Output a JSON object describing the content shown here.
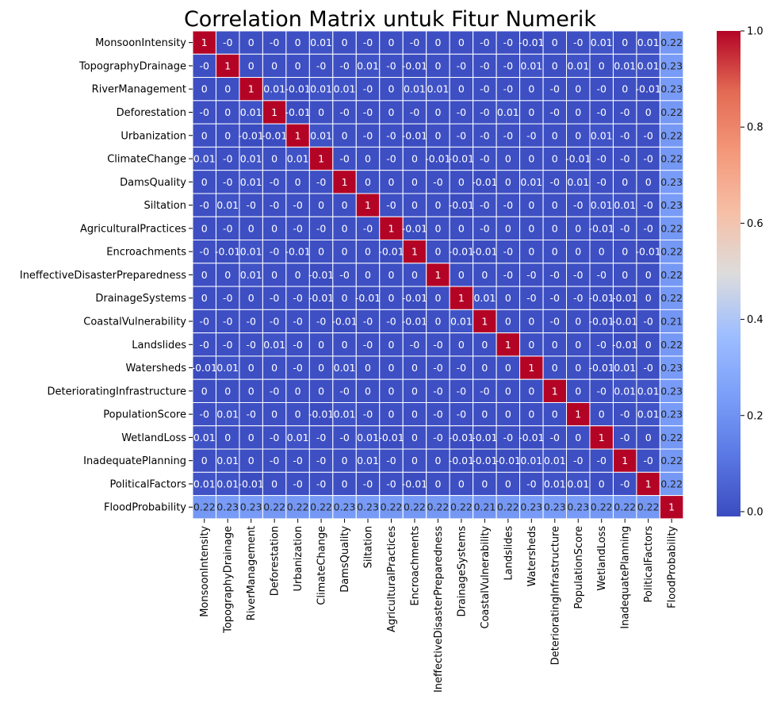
{
  "chart_data": {
    "type": "heatmap",
    "title": "Correlation Matrix untuk Fitur Numerik",
    "colormap": "coolwarm",
    "color_range": [
      -0.01,
      1.0
    ],
    "colorbar_ticks": [
      "0.0",
      "0.2",
      "0.4",
      "0.6",
      "0.8",
      "1.0"
    ],
    "colorbar_tick_values": [
      0.0,
      0.2,
      0.4,
      0.6,
      0.8,
      1.0
    ],
    "cell_border": "#ffffff",
    "variables": [
      "MonsoonIntensity",
      "TopographyDrainage",
      "RiverManagement",
      "Deforestation",
      "Urbanization",
      "ClimateChange",
      "DamsQuality",
      "Siltation",
      "AgriculturalPractices",
      "Encroachments",
      "IneffectiveDisasterPreparedness",
      "DrainageSystems",
      "CoastalVulnerability",
      "Landslides",
      "Watersheds",
      "DeterioratingInfrastructure",
      "PopulationScore",
      "WetlandLoss",
      "InadequatePlanning",
      "PoliticalFactors",
      "FloodProbability"
    ],
    "labels": [
      [
        "1",
        "-0",
        "0",
        "-0",
        "0",
        "0.01",
        "0",
        "-0",
        "0",
        "-0",
        "0",
        "0",
        "-0",
        "-0",
        "-0.01",
        "0",
        "-0",
        "0.01",
        "0",
        "0.01",
        "0.22"
      ],
      [
        "-0",
        "1",
        "0",
        "0",
        "0",
        "-0",
        "-0",
        "0.01",
        "-0",
        "-0.01",
        "0",
        "-0",
        "-0",
        "-0",
        "0.01",
        "0",
        "0.01",
        "0",
        "0.01",
        "0.01",
        "0.23"
      ],
      [
        "0",
        "0",
        "1",
        "0.01",
        "-0.01",
        "0.01",
        "0.01",
        "-0",
        "0",
        "0.01",
        "0.01",
        "0",
        "-0",
        "-0",
        "0",
        "-0",
        "0",
        "-0",
        "0",
        "-0.01",
        "0.23"
      ],
      [
        "-0",
        "0",
        "0.01",
        "1",
        "-0.01",
        "0",
        "-0",
        "-0",
        "0",
        "-0",
        "0",
        "-0",
        "-0",
        "0.01",
        "0",
        "-0",
        "0",
        "-0",
        "-0",
        "0",
        "0.22"
      ],
      [
        "0",
        "0",
        "-0.01",
        "-0.01",
        "1",
        "0.01",
        "0",
        "-0",
        "-0",
        "-0.01",
        "0",
        "-0",
        "-0",
        "-0",
        "-0",
        "0",
        "0",
        "0.01",
        "-0",
        "-0",
        "0.22"
      ],
      [
        "0.01",
        "-0",
        "0.01",
        "0",
        "0.01",
        "1",
        "-0",
        "0",
        "-0",
        "0",
        "-0.01",
        "-0.01",
        "-0",
        "0",
        "0",
        "0",
        "-0.01",
        "-0",
        "-0",
        "-0",
        "0.22"
      ],
      [
        "0",
        "-0",
        "0.01",
        "-0",
        "0",
        "-0",
        "1",
        "0",
        "0",
        "0",
        "-0",
        "0",
        "-0.01",
        "0",
        "0.01",
        "-0",
        "0.01",
        "-0",
        "0",
        "0",
        "0.23"
      ],
      [
        "-0",
        "0.01",
        "-0",
        "-0",
        "-0",
        "0",
        "0",
        "1",
        "-0",
        "0",
        "0",
        "-0.01",
        "-0",
        "-0",
        "0",
        "0",
        "-0",
        "0.01",
        "0.01",
        "-0",
        "0.23"
      ],
      [
        "0",
        "-0",
        "0",
        "0",
        "-0",
        "-0",
        "0",
        "-0",
        "1",
        "-0.01",
        "0",
        "0",
        "-0",
        "0",
        "0",
        "0",
        "0",
        "-0.01",
        "-0",
        "-0",
        "0.22"
      ],
      [
        "-0",
        "-0.01",
        "0.01",
        "-0",
        "-0.01",
        "0",
        "0",
        "0",
        "-0.01",
        "1",
        "0",
        "-0.01",
        "-0.01",
        "-0",
        "0",
        "0",
        "0",
        "0",
        "0",
        "-0.01",
        "0.22"
      ],
      [
        "0",
        "0",
        "0.01",
        "0",
        "0",
        "-0.01",
        "-0",
        "0",
        "0",
        "0",
        "1",
        "0",
        "0",
        "-0",
        "-0",
        "-0",
        "-0",
        "-0",
        "0",
        "0",
        "0.22"
      ],
      [
        "0",
        "-0",
        "0",
        "-0",
        "-0",
        "-0.01",
        "0",
        "-0.01",
        "0",
        "-0.01",
        "0",
        "1",
        "0.01",
        "0",
        "-0",
        "-0",
        "-0",
        "-0.01",
        "-0.01",
        "0",
        "0.22"
      ],
      [
        "-0",
        "-0",
        "-0",
        "-0",
        "-0",
        "-0",
        "-0.01",
        "-0",
        "-0",
        "-0.01",
        "0",
        "0.01",
        "1",
        "0",
        "0",
        "-0",
        "0",
        "-0.01",
        "-0.01",
        "-0",
        "0.21"
      ],
      [
        "-0",
        "-0",
        "-0",
        "0.01",
        "-0",
        "0",
        "0",
        "-0",
        "0",
        "-0",
        "-0",
        "0",
        "0",
        "1",
        "0",
        "0",
        "0",
        "-0",
        "-0.01",
        "0",
        "0.22"
      ],
      [
        "-0.01",
        "0.01",
        "0",
        "0",
        "-0",
        "0",
        "0.01",
        "0",
        "0",
        "0",
        "-0",
        "-0",
        "0",
        "0",
        "1",
        "0",
        "0",
        "-0.01",
        "0.01",
        "-0",
        "0.23"
      ],
      [
        "0",
        "0",
        "0",
        "-0",
        "0",
        "0",
        "-0",
        "0",
        "0",
        "0",
        "-0",
        "-0",
        "-0",
        "0",
        "0",
        "1",
        "0",
        "-0",
        "0.01",
        "0.01",
        "0.23"
      ],
      [
        "-0",
        "0.01",
        "-0",
        "0",
        "0",
        "-0.01",
        "0.01",
        "-0",
        "0",
        "0",
        "-0",
        "-0",
        "0",
        "0",
        "0",
        "0",
        "1",
        "0",
        "-0",
        "0.01",
        "0.23"
      ],
      [
        "0.01",
        "0",
        "0",
        "-0",
        "0.01",
        "-0",
        "-0",
        "0.01",
        "-0.01",
        "0",
        "-0",
        "-0.01",
        "-0.01",
        "-0",
        "-0.01",
        "-0",
        "0",
        "1",
        "-0",
        "0",
        "0.22"
      ],
      [
        "0",
        "0.01",
        "0",
        "-0",
        "-0",
        "-0",
        "0",
        "0.01",
        "-0",
        "0",
        "0",
        "-0.01",
        "-0.01",
        "-0.01",
        "0.01",
        "0.01",
        "-0",
        "-0",
        "1",
        "-0",
        "0.22"
      ],
      [
        "0.01",
        "0.01",
        "-0.01",
        "0",
        "-0",
        "-0",
        "0",
        "-0",
        "-0",
        "-0.01",
        "0",
        "0",
        "0",
        "0",
        "-0",
        "0.01",
        "0.01",
        "0",
        "-0",
        "1",
        "0.22"
      ],
      [
        "0.22",
        "0.23",
        "0.23",
        "0.22",
        "0.22",
        "0.22",
        "0.23",
        "0.23",
        "0.22",
        "0.22",
        "0.22",
        "0.22",
        "0.21",
        "0.22",
        "0.23",
        "0.23",
        "0.23",
        "0.22",
        "0.22",
        "0.22",
        "1"
      ]
    ]
  }
}
